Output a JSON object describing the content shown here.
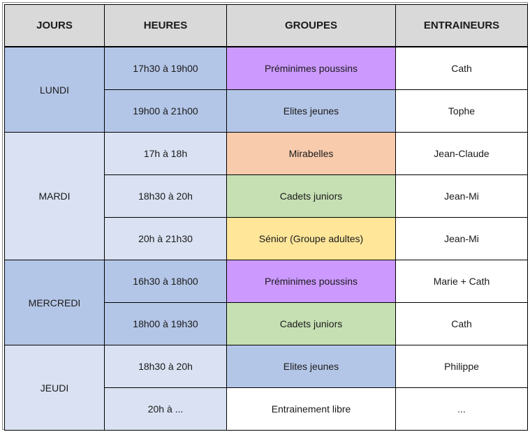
{
  "headers": [
    "JOURS",
    "HEURES",
    "GROUPES",
    "ENTRAINEURS"
  ],
  "days": {
    "lundi": "LUNDI",
    "mardi": "MARDI",
    "mercredi": "MERCREDI",
    "jeudi": "JEUDI"
  },
  "rows": [
    {
      "time": "17h30 à 19h00",
      "group": "Préminimes poussins",
      "coach": "Cath",
      "group_color": "#cc99ff"
    },
    {
      "time": "19h00 à 21h00",
      "group": "Elites jeunes",
      "coach": "Tophe",
      "group_color": "#b4c6e7"
    },
    {
      "time": "17h à 18h",
      "group": "Mirabelles",
      "coach": "Jean-Claude",
      "group_color": "#f8cbad"
    },
    {
      "time": "18h30 à 20h",
      "group": "Cadets juniors",
      "coach": "Jean-Mi",
      "group_color": "#c6e0b4"
    },
    {
      "time": "20h à 21h30",
      "group": "Sénior (Groupe adultes)",
      "coach": "Jean-Mi",
      "group_color": "#ffe699"
    },
    {
      "time": "16h30 à 18h00",
      "group": "Préminimes poussins",
      "coach": "Marie + Cath",
      "group_color": "#cc99ff"
    },
    {
      "time": "18h00 à 19h30",
      "group": "Cadets juniors",
      "coach": "Cath",
      "group_color": "#c6e0b4"
    },
    {
      "time": "18h30 à 20h",
      "group": "Elites jeunes",
      "coach": "Philippe",
      "group_color": "#b4c6e7"
    },
    {
      "time": "20h à ...",
      "group": "Entrainement libre",
      "coach": "...",
      "group_color": "#ffffff"
    }
  ],
  "colors": {
    "header_bg": "#d9d9d9",
    "day_dark": "#b4c6e7",
    "day_light": "#d9e1f2"
  }
}
